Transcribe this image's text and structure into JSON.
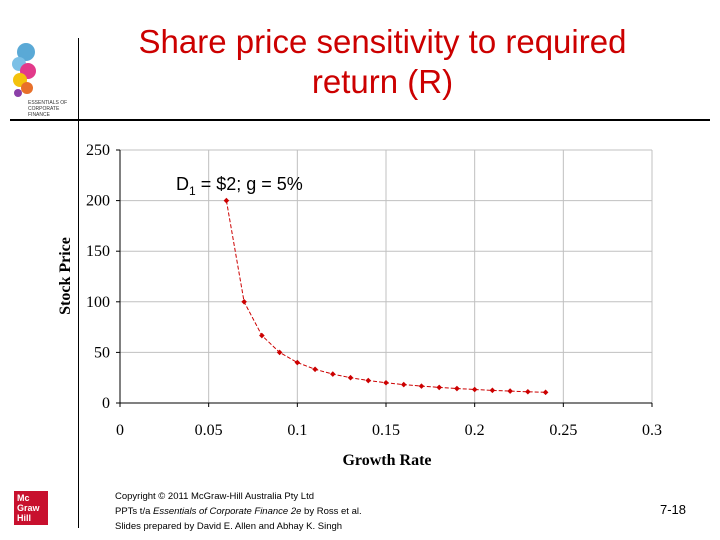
{
  "slide": {
    "title": "Share price sensitivity to required return (R)",
    "logo_caption": "ESSENTIALS OF CORPORATE FINANCE",
    "publisher_logo_lines": [
      "Mc",
      "Graw",
      "Hill"
    ],
    "copyright_line1": "Copyright © 2011 McGraw-Hill Australia Pty Ltd",
    "copyright_line2_prefix": "PPTs t/a ",
    "copyright_line2_italic": "Essentials of Corporate Finance 2e",
    "copyright_line2_suffix": " by Ross et al.",
    "copyright_line3": "Slides prepared by David E. Allen and Abhay K. Singh",
    "page_number": "7-18"
  },
  "colors": {
    "title": "#cc0000",
    "series": "#cc0000",
    "grid": "#c0c0c0"
  },
  "chart_data": {
    "type": "line",
    "title": "",
    "annotation": {
      "base": "D",
      "sub": "1",
      "rest": " = $2; g = 5%"
    },
    "xlabel": "Growth Rate",
    "ylabel": "Stock Price",
    "xlim": [
      0,
      0.3
    ],
    "ylim": [
      0,
      250
    ],
    "xticks": [
      0,
      0.05,
      0.1,
      0.15,
      0.2,
      0.25,
      0.3
    ],
    "xtick_labels": [
      "0",
      "0.05",
      "0.1",
      "0.15",
      "0.2",
      "0.25",
      "0.3"
    ],
    "yticks": [
      0,
      50,
      100,
      150,
      200,
      250
    ],
    "ytick_labels": [
      "0",
      "50",
      "100",
      "150",
      "200",
      "250"
    ],
    "grid": true,
    "series": [
      {
        "name": "Stock Price",
        "x": [
          0.06,
          0.07,
          0.08,
          0.09,
          0.1,
          0.11,
          0.12,
          0.13,
          0.14,
          0.15,
          0.16,
          0.17,
          0.18,
          0.19,
          0.2,
          0.21,
          0.22,
          0.23,
          0.24
        ],
        "y": [
          200,
          100,
          66.67,
          50,
          40,
          33.33,
          28.57,
          25,
          22.22,
          20,
          18.18,
          16.67,
          15.38,
          14.29,
          13.33,
          12.5,
          11.76,
          11.11,
          10.53
        ]
      }
    ]
  }
}
